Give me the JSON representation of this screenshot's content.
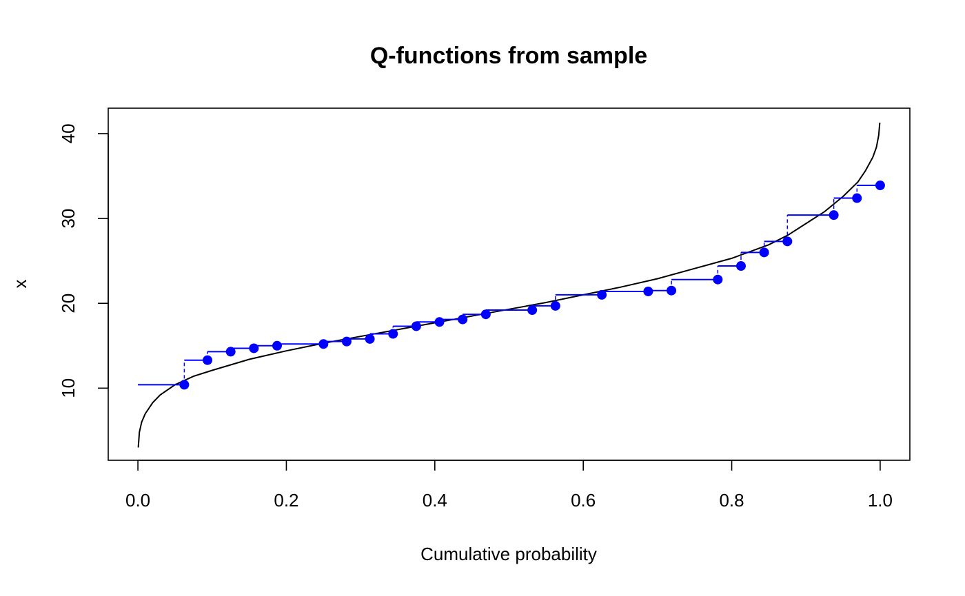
{
  "chart_data": {
    "type": "line",
    "title": "Q-functions from sample",
    "xlabel": "Cumulative probability",
    "ylabel": "x",
    "xlim": [
      -0.04,
      1.04
    ],
    "ylim": [
      1.5,
      43
    ],
    "xticks": [
      0.0,
      0.2,
      0.4,
      0.6,
      0.8,
      1.0
    ],
    "xtick_labels": [
      "0.0",
      "0.2",
      "0.4",
      "0.6",
      "0.8",
      "1.0"
    ],
    "yticks": [
      10,
      20,
      30,
      40
    ],
    "ytick_labels": [
      "10",
      "20",
      "30",
      "40"
    ],
    "grid": false,
    "colors": {
      "curve": "#000000",
      "sample": "#0000ff"
    },
    "series": [
      {
        "type": "line",
        "color": "#000000",
        "x": [
          0.0005,
          0.002,
          0.005,
          0.01,
          0.02,
          0.03,
          0.05,
          0.075,
          0.1,
          0.15,
          0.2,
          0.25,
          0.3,
          0.35,
          0.4,
          0.45,
          0.5,
          0.55,
          0.6,
          0.65,
          0.7,
          0.75,
          0.8,
          0.85,
          0.875,
          0.9,
          0.925,
          0.95,
          0.97,
          0.98,
          0.99,
          0.995,
          0.998,
          0.9995
        ],
        "y": [
          3.0,
          4.8,
          6.0,
          7.0,
          8.3,
          9.2,
          10.4,
          11.4,
          12.1,
          13.4,
          14.4,
          15.3,
          16.1,
          16.9,
          17.7,
          18.5,
          19.3,
          20.1,
          21.0,
          21.9,
          22.9,
          24.1,
          25.3,
          26.9,
          28.0,
          29.4,
          30.8,
          32.6,
          34.3,
          35.6,
          37.2,
          38.4,
          39.8,
          41.3
        ]
      },
      {
        "type": "step",
        "color": "#0000ff",
        "x": [
          0.0625,
          0.09375,
          0.125,
          0.15625,
          0.1875,
          0.25,
          0.28125,
          0.3125,
          0.34375,
          0.375,
          0.40625,
          0.4375,
          0.46875,
          0.53125,
          0.5625,
          0.625,
          0.6875,
          0.71875,
          0.78125,
          0.8125,
          0.84375,
          0.875,
          0.9375,
          0.96875,
          1.0
        ],
        "y": [
          10.4,
          13.3,
          14.3,
          14.7,
          15.0,
          15.2,
          15.5,
          15.8,
          16.4,
          17.3,
          17.8,
          18.1,
          18.7,
          19.2,
          19.7,
          21.0,
          21.4,
          21.5,
          22.8,
          24.4,
          26.0,
          27.3,
          30.4,
          32.4,
          33.9
        ]
      }
    ]
  }
}
